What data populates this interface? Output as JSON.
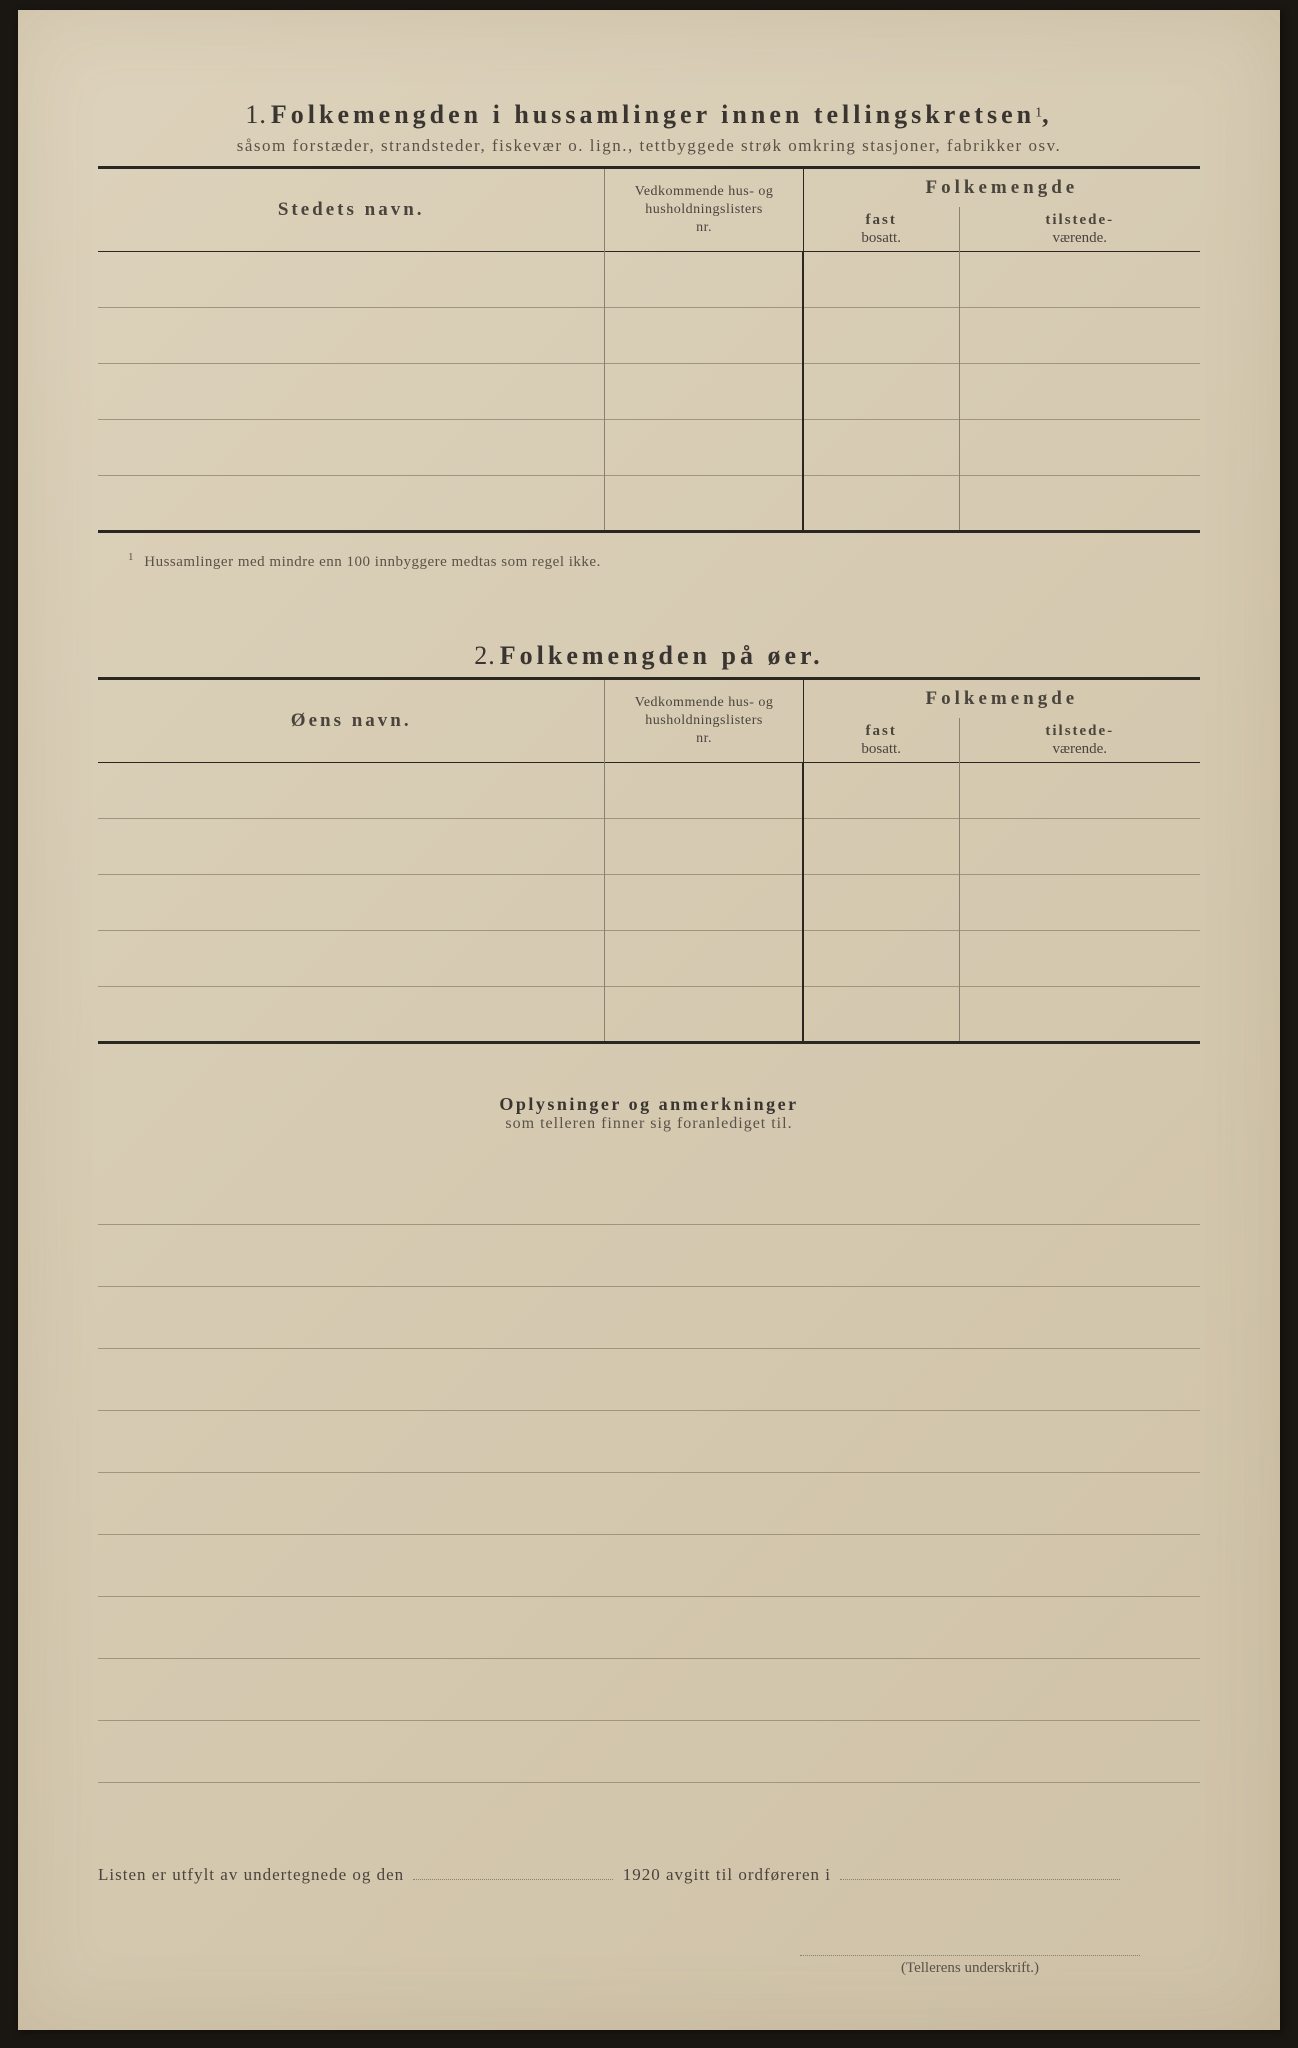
{
  "section1": {
    "number": "1.",
    "title": "Folkemengden i hussamlinger innen tellingskretsen",
    "title_sup": "1",
    "title_suffix": ",",
    "subtitle": "såsom forstæder, strandsteder, fiskevær o. lign., tettbyggede strøk omkring stasjoner, fabrikker osv.",
    "col_name": "Stedets navn.",
    "col_ref_l1": "Vedkommende hus- og",
    "col_ref_l2": "husholdningslisters",
    "col_ref_l3": "nr.",
    "col_folk": "Folkemengde",
    "col_fast_b": "fast",
    "col_fast_s": "bosatt.",
    "col_til_b": "tilstede-",
    "col_til_s": "værende.",
    "row_count": 5,
    "footnote_num": "1",
    "footnote": "Hussamlinger med mindre enn 100 innbyggere medtas som regel ikke."
  },
  "section2": {
    "number": "2.",
    "title": "Folkemengden på øer.",
    "col_name": "Øens navn.",
    "col_ref_l1": "Vedkommende hus- og",
    "col_ref_l2": "husholdningslisters",
    "col_ref_l3": "nr.",
    "col_folk": "Folkemengde",
    "col_fast_b": "fast",
    "col_fast_s": "bosatt.",
    "col_til_b": "tilstede-",
    "col_til_s": "værende.",
    "row_count": 5
  },
  "notes": {
    "title": "Oplysninger og anmerkninger",
    "subtitle": "som telleren finner sig foranlediget til.",
    "line_count": 10
  },
  "footer": {
    "text_a": "Listen er utfylt av undertegnede og den",
    "text_b": "1920 avgitt til ordføreren i",
    "signature_label": "(Tellerens underskrift.)"
  },
  "style": {
    "page_bg": "#d8cdb5",
    "ink": "#2a2622",
    "rule_light": "#a09680",
    "rule_med": "#8a8070",
    "text_muted": "#5a5248"
  }
}
